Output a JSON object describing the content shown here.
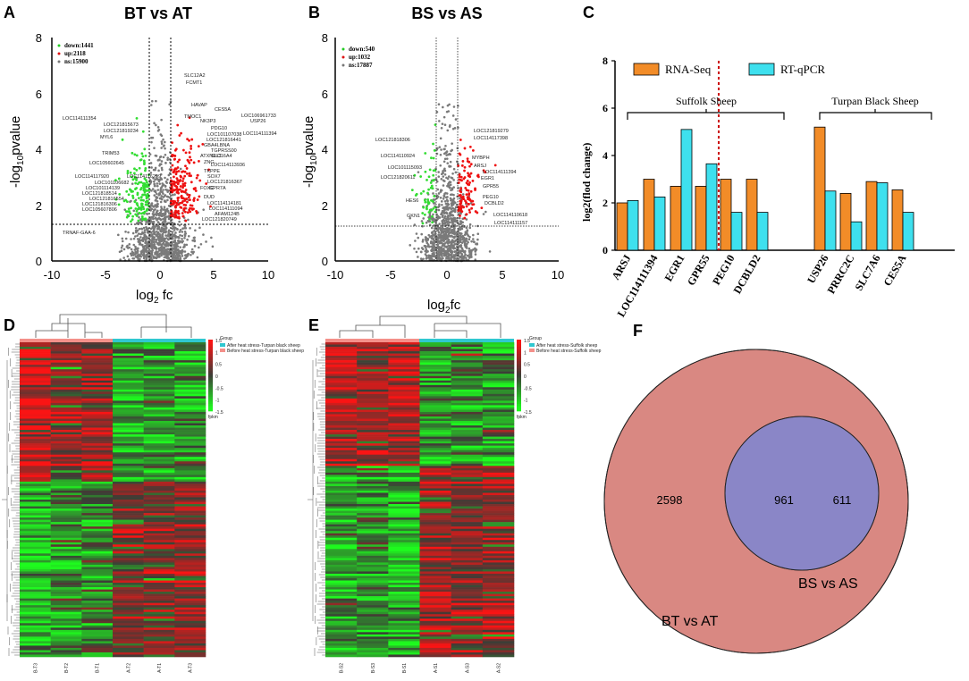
{
  "panels": {
    "a": "A",
    "b": "B",
    "c": "C",
    "d": "D",
    "e": "E",
    "f": "F"
  },
  "volcano_a": {
    "title": "BT vs AT",
    "xlabel_base": "log",
    "xlabel_sub": "2",
    "xlabel_tail": " fc",
    "ylabel_pre": "-log",
    "ylabel_sub": "10",
    "ylabel_tail": "pvalue",
    "xticks": [
      "-10",
      "-5",
      "0",
      "5",
      "10"
    ],
    "yticks": [
      "0",
      "2",
      "4",
      "6",
      "8"
    ],
    "legend": [
      "down:1441",
      "up:2118",
      "ns:15900"
    ],
    "genes_right": [
      "SLC12A2",
      "FCMT1",
      "HAVAP",
      "CES5A",
      "TMOC1",
      "LOC106961733",
      "USP26",
      "NK3P3",
      "PDG10",
      "LOC101107038",
      "LOC114111394",
      "LOC121816441",
      "GBA4LBNA",
      "TGPRSS00",
      "ATXN1L3",
      "SLC16A4",
      "ZNG",
      "LOC114113936",
      "TKPPE",
      "SOX7",
      "LOC121816367",
      "FOXC",
      "GPR7A",
      "DUD",
      "LOC114114181",
      "LOC114111094",
      "AFAM124B",
      "LOC121820749"
    ],
    "genes_left": [
      "LOC114111354",
      "LOC121815673",
      "LOC121819234",
      "MYL6",
      "TRIM53",
      "LOC105602645",
      "LOC114117920",
      "LOC114116299",
      "LOC101106682",
      "LOC101114139",
      "LOC121818514",
      "LOC121816554",
      "LOC121816306",
      "LOC105607806",
      "TRNAF-GAA-6"
    ],
    "chart_data": {
      "type": "scatter",
      "title": "BT vs AT",
      "xlabel": "log2 fc",
      "ylabel": "-log10 pvalue",
      "xlim": [
        -10,
        10
      ],
      "ylim": [
        0,
        8
      ],
      "fc_thresholds": [
        -1,
        1
      ],
      "pvalue_threshold": 1.3,
      "counts": {
        "down": 1441,
        "up": 2118,
        "ns": 15900
      }
    }
  },
  "volcano_b": {
    "title": "BS vs AS",
    "xlabel_base": "log",
    "xlabel_sub": "2",
    "xlabel_tail": "fc",
    "ylabel_pre": "-log",
    "ylabel_sub": "10",
    "ylabel_tail": "pvalue",
    "xticks": [
      "-10",
      "-5",
      "0",
      "5",
      "10"
    ],
    "yticks": [
      "0",
      "2",
      "4",
      "6",
      "8"
    ],
    "legend": [
      "down:540",
      "up:1032",
      "ns:17887"
    ],
    "genes_right": [
      "LOC121819279",
      "LOC114117398",
      "MYBPH",
      "ARSJ",
      "LOC114111394",
      "EGR1",
      "GPR55",
      "PEG10",
      "DCBLD2",
      "LOC114110618",
      "LOC114111157"
    ],
    "genes_left": [
      "LOC121818306",
      "LOC114110924",
      "LOC101115093",
      "LOC121820611",
      "HES6",
      "GKN1"
    ],
    "chart_data": {
      "type": "scatter",
      "title": "BS vs AS",
      "xlabel": "log2 fc",
      "ylabel": "-log10 pvalue",
      "xlim": [
        -10,
        10
      ],
      "ylim": [
        0,
        8
      ],
      "fc_thresholds": [
        -1,
        1
      ],
      "pvalue_threshold": 1.3,
      "counts": {
        "down": 540,
        "up": 1032,
        "ns": 17887
      }
    }
  },
  "bar_c": {
    "ylabel": "log2(flod change)",
    "yticks": [
      "0",
      "2",
      "4",
      "6",
      "8"
    ],
    "legend": [
      "RNA-Seq",
      "RT-qPCR"
    ],
    "group_suffolk": "Suffolk Sheep",
    "group_turpan": "Turpan Black Sheep",
    "colors": {
      "rna": "#f28c28",
      "qpcr": "#3ee0ee",
      "divider": "#cc0000"
    },
    "chart_data": {
      "type": "bar",
      "categories": [
        "ARSJ",
        "LOC114111394",
        "EGR1",
        "GPR55",
        "PEG10",
        "DCBLD2",
        "USP26",
        "PRRC2C",
        "SLC7A6",
        "CES5A"
      ],
      "series": [
        {
          "name": "RNA-Seq",
          "values": [
            2.0,
            3.0,
            2.7,
            2.7,
            3.0,
            3.0,
            5.2,
            2.4,
            2.9,
            2.55
          ]
        },
        {
          "name": "RT-qPCR",
          "values": [
            2.1,
            2.25,
            5.1,
            3.65,
            1.6,
            1.6,
            2.5,
            1.2,
            2.85,
            1.6
          ]
        }
      ],
      "ylabel": "log2(flod change)",
      "ylim": [
        0,
        8
      ]
    }
  },
  "heatmap_d": {
    "legend_title": "Group",
    "legend_items": [
      "After heat stress-Turpan black sheep",
      "Before heat stress-Turpan black sheep"
    ],
    "scale": [
      "1.5",
      "1",
      "0.5",
      "0",
      "-0.5",
      "-1",
      "-1.5"
    ],
    "scale_label": "fpkm",
    "columns": [
      "B-T3",
      "B-T2",
      "B-T1",
      "A-T2",
      "A-T1",
      "A-T3"
    ]
  },
  "heatmap_e": {
    "legend_title": "Group",
    "legend_items": [
      "After heat stress-Suffolk sheep",
      "Before heat stress-Suffolk sheep"
    ],
    "scale": [
      "1.5",
      "1",
      "0.5",
      "0",
      "-0.5",
      "-1",
      "-1.5"
    ],
    "scale_label": "fpkm",
    "columns": [
      "B-S2",
      "B-S3",
      "B-S1",
      "A-S1",
      "A-S3",
      "A-S2"
    ]
  },
  "venn_f": {
    "left_only": "2598",
    "overlap": "961",
    "right_only": "611",
    "left_label": "BT vs AT",
    "right_label": "BS vs AS",
    "colors": {
      "left": "#d98882",
      "right": "#6cf4f4",
      "overlap": "#8a86c7"
    }
  }
}
